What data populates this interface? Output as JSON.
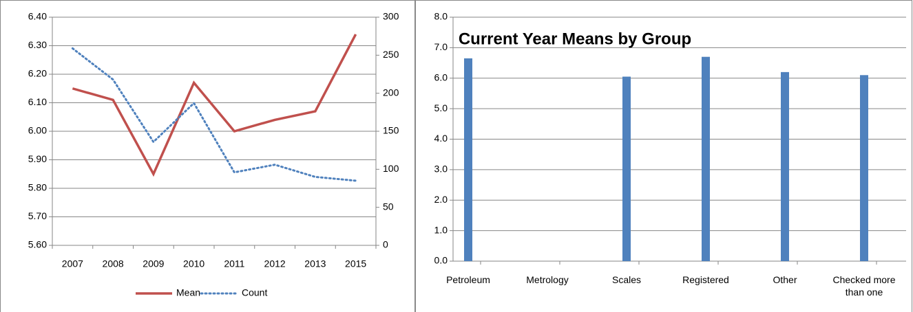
{
  "chart_data": [
    {
      "type": "line",
      "categories": [
        "2007",
        "2008",
        "2009",
        "2010",
        "2011",
        "2012",
        "2013",
        "2015"
      ],
      "series": [
        {
          "name": "Mean",
          "color": "#c0504d",
          "line_style": "solid",
          "values": [
            6.15,
            6.11,
            5.85,
            6.17,
            6.0,
            6.04,
            6.07,
            6.34
          ]
        },
        {
          "name": "Count",
          "color": "#4f81bd",
          "line_style": "dotted",
          "axis": "y2",
          "values": [
            259,
            218,
            136,
            187,
            96,
            106,
            90,
            85
          ]
        }
      ],
      "ylim": [
        5.6,
        6.4
      ],
      "yticks": [
        {
          "value": 5.6,
          "label": "5.60"
        },
        {
          "value": 5.7,
          "label": "5.70"
        },
        {
          "value": 5.8,
          "label": "5.80"
        },
        {
          "value": 5.9,
          "label": "5.90"
        },
        {
          "value": 6.0,
          "label": "6.00"
        },
        {
          "value": 6.1,
          "label": "6.10"
        },
        {
          "value": 6.2,
          "label": "6.20"
        },
        {
          "value": 6.3,
          "label": "6.30"
        },
        {
          "value": 6.4,
          "label": "6.40"
        }
      ],
      "y2lim": [
        0,
        300
      ],
      "y2ticks": [
        0,
        50,
        100,
        150,
        200,
        250,
        300
      ],
      "grid": true,
      "legend": "bottom"
    },
    {
      "type": "bar",
      "title": "Current Year Means by Group",
      "categories": [
        "Petroleum",
        "Metrology",
        "Scales",
        "Registered",
        "Other",
        "Checked more than one"
      ],
      "values": [
        6.65,
        null,
        6.05,
        6.7,
        6.2,
        6.1
      ],
      "color": "#4f81bd",
      "ylim": [
        0,
        8
      ],
      "yticks": [
        {
          "value": 0,
          "label": "0.0"
        },
        {
          "value": 1,
          "label": "1.0"
        },
        {
          "value": 2,
          "label": "2.0"
        },
        {
          "value": 3,
          "label": "3.0"
        },
        {
          "value": 4,
          "label": "4.0"
        },
        {
          "value": 5,
          "label": "5.0"
        },
        {
          "value": 6,
          "label": "6.0"
        },
        {
          "value": 7,
          "label": "7.0"
        },
        {
          "value": 8,
          "label": "8.0"
        }
      ],
      "grid": true
    }
  ]
}
